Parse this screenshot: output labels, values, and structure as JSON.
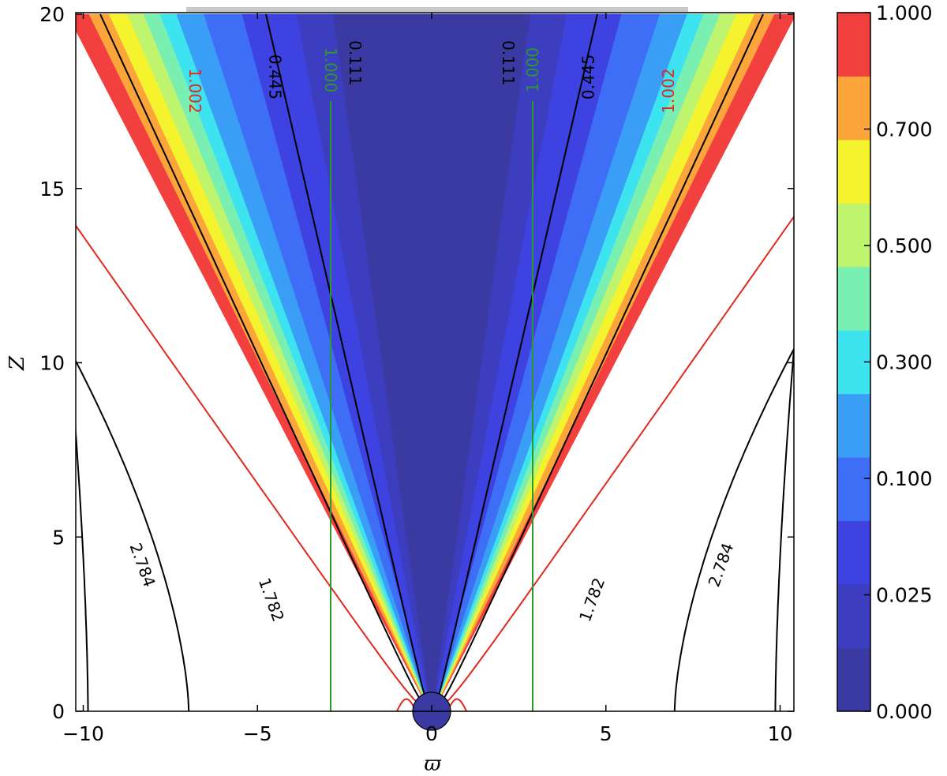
{
  "chart_data": {
    "type": "contour",
    "xlabel": "ϖ",
    "ylabel": "Z",
    "xlim": [
      -10.2,
      10.2
    ],
    "ylim": [
      0,
      20
    ],
    "x_ticks": [
      {
        "value": -10,
        "label": "−10"
      },
      {
        "value": -5,
        "label": "−5"
      },
      {
        "value": 0,
        "label": "0"
      },
      {
        "value": 5,
        "label": "5"
      },
      {
        "value": 10,
        "label": "10"
      }
    ],
    "y_ticks": [
      {
        "value": 0,
        "label": "0"
      },
      {
        "value": 5,
        "label": "5"
      },
      {
        "value": 10,
        "label": "10"
      },
      {
        "value": 15,
        "label": "15"
      },
      {
        "value": 20,
        "label": "20"
      }
    ],
    "filled_levels": [
      {
        "lo": 0.0,
        "hi": 0.025,
        "color": "#3b3aa3"
      },
      {
        "lo": 0.025,
        "hi": 0.05,
        "color": "#3d3dbf"
      },
      {
        "lo": 0.05,
        "hi": 0.1,
        "color": "#3d42e0"
      },
      {
        "lo": 0.1,
        "hi": 0.2,
        "color": "#3d6ef5"
      },
      {
        "lo": 0.2,
        "hi": 0.3,
        "color": "#3b9ef6"
      },
      {
        "lo": 0.3,
        "hi": 0.4,
        "color": "#3ee3f0"
      },
      {
        "lo": 0.4,
        "hi": 0.5,
        "color": "#7aefb2"
      },
      {
        "lo": 0.5,
        "hi": 0.6,
        "color": "#bff46e"
      },
      {
        "lo": 0.6,
        "hi": 0.7,
        "color": "#f5f32e"
      },
      {
        "lo": 0.7,
        "hi": 0.85,
        "color": "#fba53b"
      },
      {
        "lo": 0.85,
        "hi": 1.0,
        "color": "#f2403e"
      }
    ],
    "colorbar": {
      "tick_labels": [
        "0.000",
        "0.025",
        "0.100",
        "0.300",
        "0.500",
        "0.700",
        "1.000"
      ]
    },
    "contour_lines": [
      {
        "label": "0.111",
        "color": "#000000",
        "ws": 20,
        "k": 0.22
      },
      {
        "label": "0.445",
        "color": "#000000",
        "ws": 20,
        "k": 0.44
      },
      {
        "label": "1.002",
        "color": "#e0281e",
        "ws": 20,
        "k": 0.67
      },
      {
        "label": "1.782",
        "color": "#000000",
        "ws": 10.4,
        "k": 0.382
      },
      {
        "label": "2.784",
        "color": "#000000",
        "ws": 10.4,
        "k": 0.66
      },
      {
        "label": "1.000",
        "color": "#2a9a2a",
        "vertical_x": 2.9
      }
    ]
  }
}
